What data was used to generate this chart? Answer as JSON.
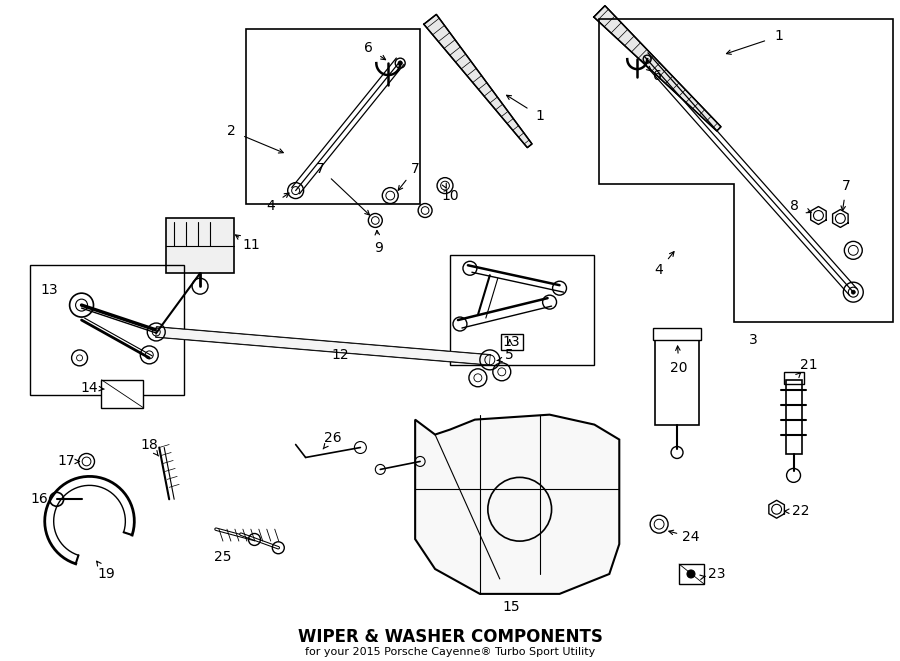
{
  "title": "WIPER & WASHER COMPONENTS",
  "subtitle": "for your 2015 Porsche Cayenne® Turbo Sport Utility",
  "bg_color": "#ffffff",
  "fig_width": 9.0,
  "fig_height": 6.61,
  "dpi": 100,
  "lw_main": 1.2,
  "label_fs": 10,
  "title_fs": 12
}
